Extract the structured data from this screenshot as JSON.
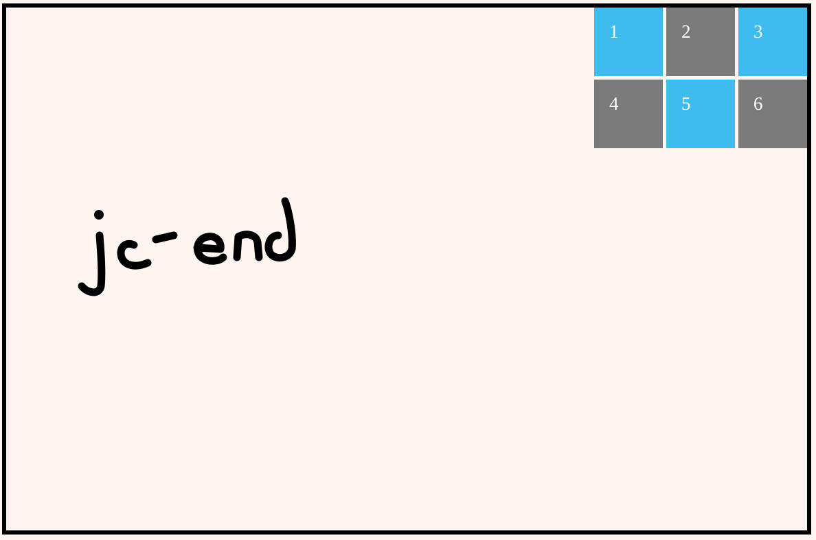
{
  "annotation": {
    "handwritten_text": "jc-end",
    "ink_color": "#000000"
  },
  "colors": {
    "background": "#fef5f1",
    "frame_border": "#000000",
    "accent_blue": "#3fbcee",
    "neutral_gray": "#7a7a7a",
    "label_color": "#ffffff"
  },
  "grid": {
    "items": [
      {
        "label": "1",
        "color": "#3fbcee"
      },
      {
        "label": "2",
        "color": "#7a7a7a"
      },
      {
        "label": "3",
        "color": "#3fbcee"
      },
      {
        "label": "4",
        "color": "#7a7a7a"
      },
      {
        "label": "5",
        "color": "#3fbcee"
      },
      {
        "label": "6",
        "color": "#7a7a7a"
      }
    ]
  }
}
